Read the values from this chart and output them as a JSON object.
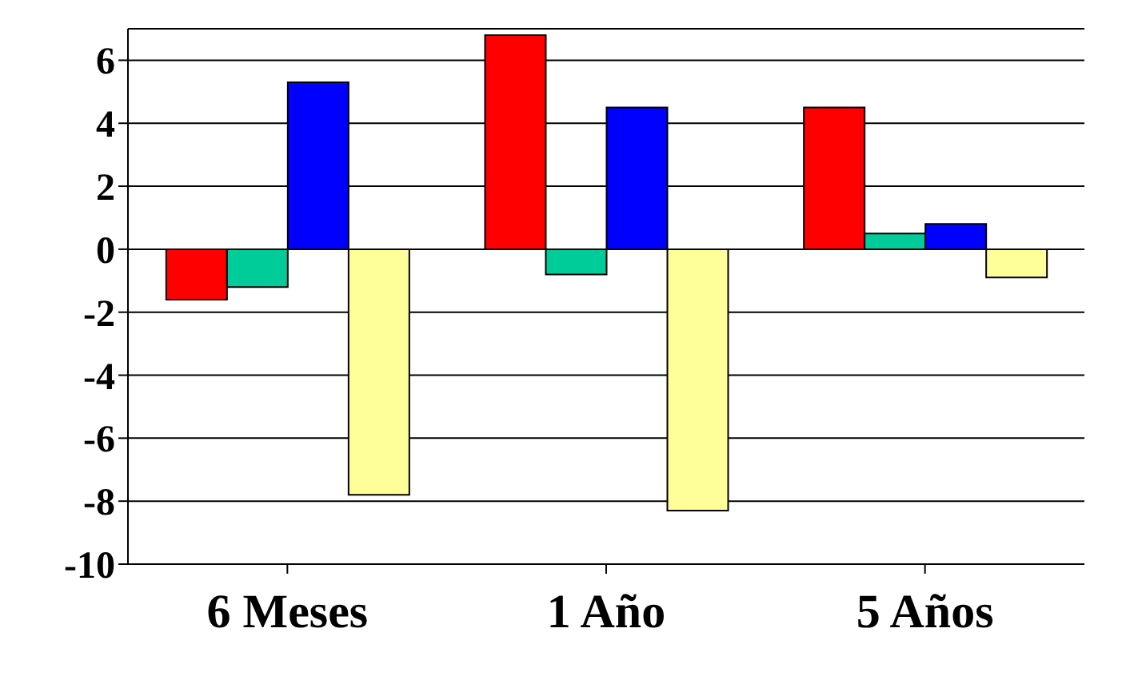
{
  "chart_data": {
    "type": "bar",
    "categories": [
      "6 Meses",
      "1 Año",
      "5 Años"
    ],
    "series": [
      {
        "color": "#ff0000",
        "values": [
          -1.6,
          6.8,
          4.5
        ]
      },
      {
        "color": "#00cc99",
        "values": [
          -1.2,
          -0.8,
          0.5
        ]
      },
      {
        "color": "#0000ff",
        "values": [
          5.3,
          4.5,
          0.8
        ]
      },
      {
        "color": "#ffff99",
        "values": [
          -7.8,
          -8.3,
          -0.9
        ]
      }
    ],
    "ylim": [
      -10,
      7
    ],
    "yticks": [
      -10,
      -8,
      -6,
      -4,
      -2,
      0,
      2,
      4,
      6
    ],
    "grid": "y",
    "legend": false
  }
}
